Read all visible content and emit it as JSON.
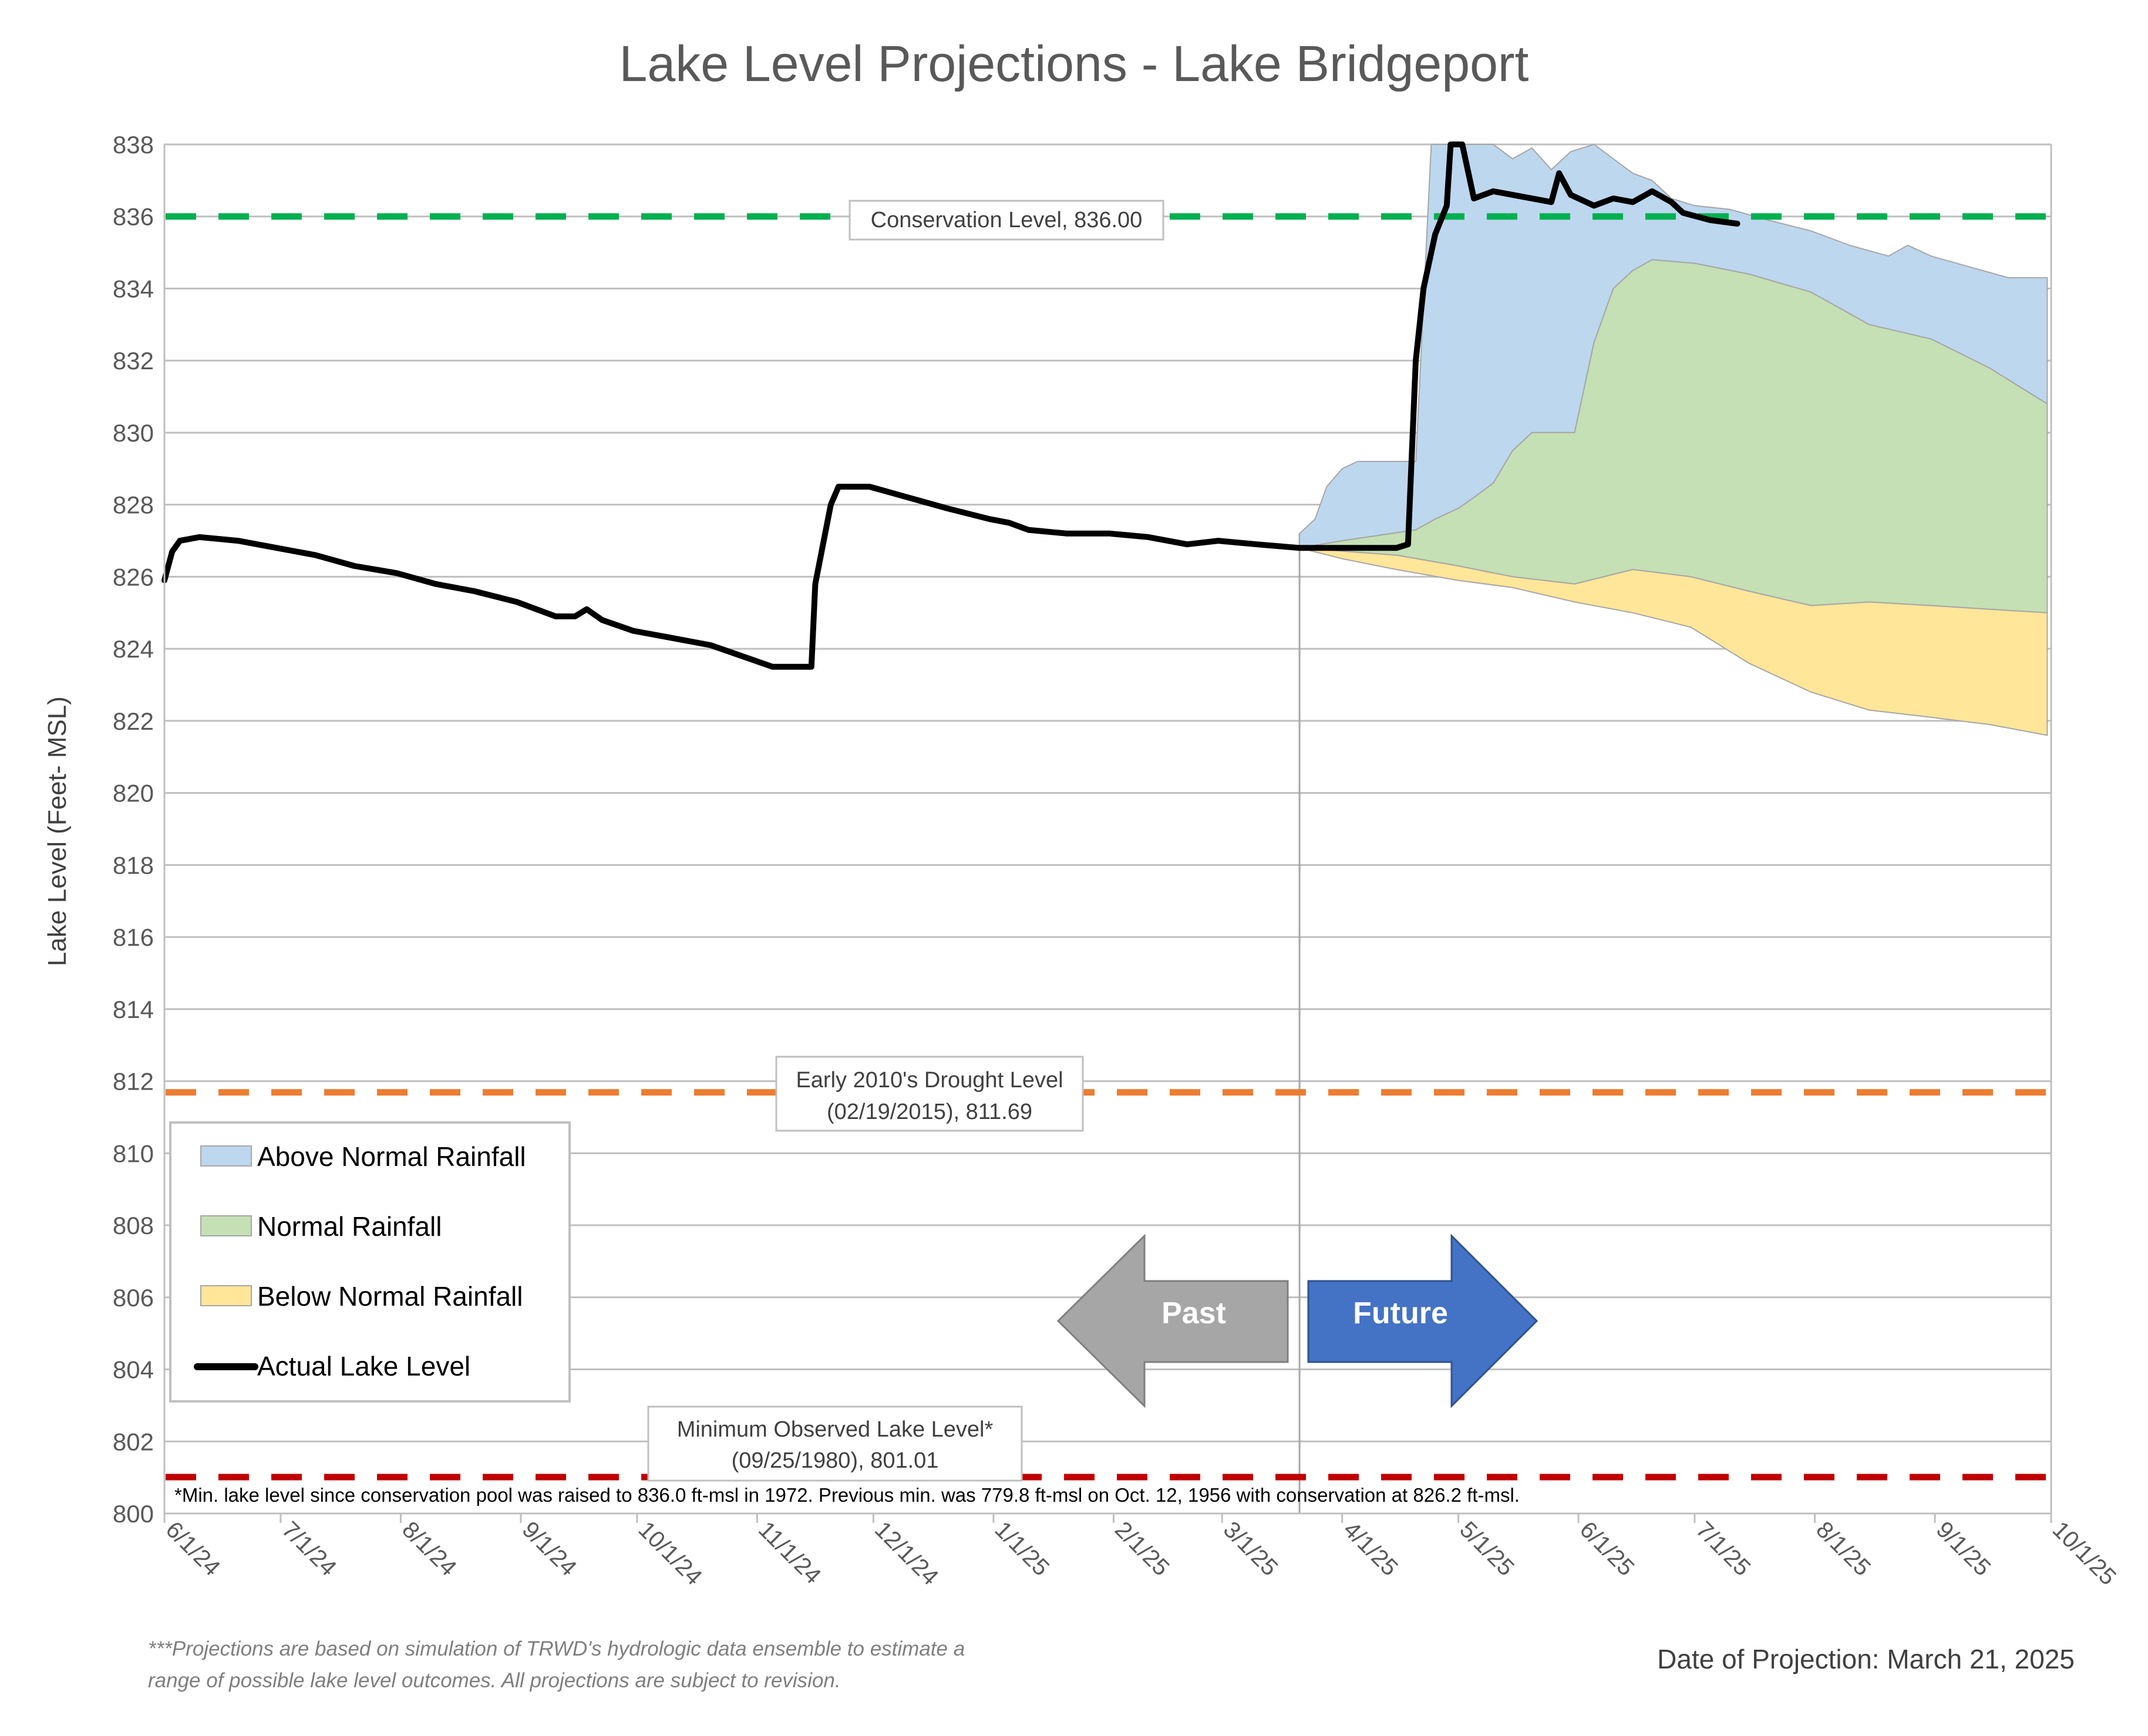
{
  "chart_data": {
    "type": "area",
    "title": "Lake Level Projections - Lake Bridgeport",
    "ylabel": "Lake Level (Feet- MSL)",
    "xlabel": "",
    "ylim": [
      800,
      838
    ],
    "yticks": [
      800,
      802,
      804,
      806,
      808,
      810,
      812,
      814,
      816,
      818,
      820,
      822,
      824,
      826,
      828,
      830,
      832,
      834,
      836,
      838
    ],
    "xlim": [
      "2024-06-01",
      "2025-10-01"
    ],
    "xticks": [
      {
        "label": "6/1/24",
        "date": "2024-06-01"
      },
      {
        "label": "7/1/24",
        "date": "2024-07-01"
      },
      {
        "label": "8/1/24",
        "date": "2024-08-01"
      },
      {
        "label": "9/1/24",
        "date": "2024-09-01"
      },
      {
        "label": "10/1/24",
        "date": "2024-10-01"
      },
      {
        "label": "11/1/24",
        "date": "2024-11-01"
      },
      {
        "label": "12/1/24",
        "date": "2024-12-01"
      },
      {
        "label": "1/1/25",
        "date": "2025-01-01"
      },
      {
        "label": "2/1/25",
        "date": "2025-02-01"
      },
      {
        "label": "3/1/25",
        "date": "2025-03-01"
      },
      {
        "label": "4/1/25",
        "date": "2025-04-01"
      },
      {
        "label": "5/1/25",
        "date": "2025-05-01"
      },
      {
        "label": "6/1/25",
        "date": "2025-06-01"
      },
      {
        "label": "7/1/25",
        "date": "2025-07-01"
      },
      {
        "label": "8/1/25",
        "date": "2025-08-01"
      },
      {
        "label": "9/1/25",
        "date": "2025-09-01"
      },
      {
        "label": "10/1/25",
        "date": "2025-10-01"
      }
    ],
    "grid": true,
    "projection_date": "2025-03-21",
    "reference_lines": [
      {
        "name": "Conservation Level",
        "value": 836.0,
        "color": "#00b050",
        "label": "Conservation Level, 836.00"
      },
      {
        "name": "Early 2010's Drought Level",
        "value": 811.69,
        "color": "#ed7d31",
        "label_line1": "Early 2010's Drought Level",
        "label_line2": "(02/19/2015), 811.69"
      },
      {
        "name": "Minimum Observed Lake Level",
        "value": 801.01,
        "color": "#c00000",
        "label_line1": "Minimum Observed Lake Level*",
        "label_line2": "(09/25/1980), 801.01"
      }
    ],
    "series": [
      {
        "name": "Above Normal Rainfall",
        "type": "band",
        "color": "#bdd7ee",
        "upper": [
          [
            "2025-03-21",
            827.2
          ],
          [
            "2025-03-25",
            827.6
          ],
          [
            "2025-03-28",
            828.5
          ],
          [
            "2025-04-01",
            829.0
          ],
          [
            "2025-04-05",
            829.2
          ],
          [
            "2025-04-10",
            829.2
          ],
          [
            "2025-04-15",
            829.2
          ],
          [
            "2025-04-20",
            829.2
          ],
          [
            "2025-04-24",
            838.0
          ],
          [
            "2025-05-10",
            838.0
          ],
          [
            "2025-05-15",
            837.6
          ],
          [
            "2025-05-20",
            837.9
          ],
          [
            "2025-05-25",
            837.3
          ],
          [
            "2025-05-30",
            837.8
          ],
          [
            "2025-06-05",
            838.0
          ],
          [
            "2025-06-10",
            837.6
          ],
          [
            "2025-06-15",
            837.2
          ],
          [
            "2025-06-20",
            837.0
          ],
          [
            "2025-06-25",
            836.5
          ],
          [
            "2025-07-01",
            836.3
          ],
          [
            "2025-07-10",
            836.2
          ],
          [
            "2025-07-20",
            835.9
          ],
          [
            "2025-07-31",
            835.6
          ],
          [
            "2025-08-10",
            835.2
          ],
          [
            "2025-08-20",
            834.9
          ],
          [
            "2025-08-25",
            835.2
          ],
          [
            "2025-08-31",
            834.9
          ],
          [
            "2025-09-10",
            834.6
          ],
          [
            "2025-09-20",
            834.3
          ],
          [
            "2025-09-30",
            834.3
          ]
        ],
        "lower": [
          [
            "2025-03-21",
            826.8
          ],
          [
            "2025-04-01",
            827.0
          ],
          [
            "2025-04-20",
            827.3
          ],
          [
            "2025-04-25",
            827.6
          ],
          [
            "2025-05-01",
            827.9
          ],
          [
            "2025-05-05",
            828.2
          ],
          [
            "2025-05-10",
            828.6
          ],
          [
            "2025-05-15",
            829.5
          ],
          [
            "2025-05-20",
            830.0
          ],
          [
            "2025-05-25",
            830.0
          ],
          [
            "2025-05-31",
            830.0
          ],
          [
            "2025-06-05",
            832.5
          ],
          [
            "2025-06-10",
            834.0
          ],
          [
            "2025-06-15",
            834.5
          ],
          [
            "2025-06-20",
            834.8
          ],
          [
            "2025-07-01",
            834.7
          ],
          [
            "2025-07-15",
            834.4
          ],
          [
            "2025-07-31",
            833.9
          ],
          [
            "2025-08-15",
            833.0
          ],
          [
            "2025-08-31",
            832.6
          ],
          [
            "2025-09-15",
            831.8
          ],
          [
            "2025-09-30",
            830.8
          ]
        ]
      },
      {
        "name": "Normal Rainfall",
        "type": "band",
        "color": "#c5e0b4",
        "upper": [
          [
            "2025-03-21",
            826.8
          ],
          [
            "2025-04-01",
            827.0
          ],
          [
            "2025-04-20",
            827.3
          ],
          [
            "2025-04-25",
            827.6
          ],
          [
            "2025-05-01",
            827.9
          ],
          [
            "2025-05-05",
            828.2
          ],
          [
            "2025-05-10",
            828.6
          ],
          [
            "2025-05-15",
            829.5
          ],
          [
            "2025-05-20",
            830.0
          ],
          [
            "2025-05-25",
            830.0
          ],
          [
            "2025-05-31",
            830.0
          ],
          [
            "2025-06-05",
            832.5
          ],
          [
            "2025-06-10",
            834.0
          ],
          [
            "2025-06-15",
            834.5
          ],
          [
            "2025-06-20",
            834.8
          ],
          [
            "2025-07-01",
            834.7
          ],
          [
            "2025-07-15",
            834.4
          ],
          [
            "2025-07-31",
            833.9
          ],
          [
            "2025-08-15",
            833.0
          ],
          [
            "2025-08-31",
            832.6
          ],
          [
            "2025-09-15",
            831.8
          ],
          [
            "2025-09-30",
            830.8
          ]
        ],
        "lower": [
          [
            "2025-03-21",
            826.8
          ],
          [
            "2025-04-15",
            826.6
          ],
          [
            "2025-05-01",
            826.3
          ],
          [
            "2025-05-15",
            826.0
          ],
          [
            "2025-05-31",
            825.8
          ],
          [
            "2025-06-15",
            826.2
          ],
          [
            "2025-06-30",
            826.0
          ],
          [
            "2025-07-15",
            825.6
          ],
          [
            "2025-07-31",
            825.2
          ],
          [
            "2025-08-15",
            825.3
          ],
          [
            "2025-08-31",
            825.2
          ],
          [
            "2025-09-15",
            825.1
          ],
          [
            "2025-09-30",
            825.0
          ]
        ]
      },
      {
        "name": "Below Normal Rainfall",
        "type": "band",
        "color": "#ffe699",
        "upper": [
          [
            "2025-03-21",
            826.8
          ],
          [
            "2025-04-15",
            826.6
          ],
          [
            "2025-05-01",
            826.3
          ],
          [
            "2025-05-15",
            826.0
          ],
          [
            "2025-05-31",
            825.8
          ],
          [
            "2025-06-15",
            826.2
          ],
          [
            "2025-06-30",
            826.0
          ],
          [
            "2025-07-15",
            825.6
          ],
          [
            "2025-07-31",
            825.2
          ],
          [
            "2025-08-15",
            825.3
          ],
          [
            "2025-08-31",
            825.2
          ],
          [
            "2025-09-15",
            825.1
          ],
          [
            "2025-09-30",
            825.0
          ]
        ],
        "lower": [
          [
            "2025-03-21",
            826.8
          ],
          [
            "2025-04-01",
            826.5
          ],
          [
            "2025-04-15",
            826.2
          ],
          [
            "2025-05-01",
            825.9
          ],
          [
            "2025-05-15",
            825.7
          ],
          [
            "2025-05-31",
            825.3
          ],
          [
            "2025-06-15",
            825.0
          ],
          [
            "2025-06-30",
            824.6
          ],
          [
            "2025-07-15",
            823.6
          ],
          [
            "2025-07-31",
            822.8
          ],
          [
            "2025-08-15",
            822.3
          ],
          [
            "2025-08-31",
            822.1
          ],
          [
            "2025-09-15",
            821.9
          ],
          [
            "2025-09-30",
            821.6
          ]
        ]
      },
      {
        "name": "Actual Lake Level",
        "type": "line",
        "color": "#000000",
        "points": [
          [
            "2024-06-01",
            825.9
          ],
          [
            "2024-06-03",
            826.7
          ],
          [
            "2024-06-05",
            827.0
          ],
          [
            "2024-06-10",
            827.1
          ],
          [
            "2024-06-20",
            827.0
          ],
          [
            "2024-06-30",
            826.8
          ],
          [
            "2024-07-10",
            826.6
          ],
          [
            "2024-07-20",
            826.3
          ],
          [
            "2024-07-31",
            826.1
          ],
          [
            "2024-08-10",
            825.8
          ],
          [
            "2024-08-20",
            825.6
          ],
          [
            "2024-08-31",
            825.3
          ],
          [
            "2024-09-05",
            825.1
          ],
          [
            "2024-09-10",
            824.9
          ],
          [
            "2024-09-15",
            824.9
          ],
          [
            "2024-09-18",
            825.1
          ],
          [
            "2024-09-22",
            824.8
          ],
          [
            "2024-09-30",
            824.5
          ],
          [
            "2024-10-10",
            824.3
          ],
          [
            "2024-10-20",
            824.1
          ],
          [
            "2024-10-28",
            823.8
          ],
          [
            "2024-11-05",
            823.5
          ],
          [
            "2024-11-15",
            823.5
          ],
          [
            "2024-11-16",
            825.8
          ],
          [
            "2024-11-20",
            828.0
          ],
          [
            "2024-11-22",
            828.5
          ],
          [
            "2024-11-30",
            828.5
          ],
          [
            "2024-12-10",
            828.2
          ],
          [
            "2024-12-20",
            827.9
          ],
          [
            "2024-12-31",
            827.6
          ],
          [
            "2025-01-05",
            827.5
          ],
          [
            "2025-01-10",
            827.3
          ],
          [
            "2025-01-20",
            827.2
          ],
          [
            "2025-01-31",
            827.2
          ],
          [
            "2025-02-10",
            827.1
          ],
          [
            "2025-02-20",
            826.9
          ],
          [
            "2025-02-28",
            827.0
          ],
          [
            "2025-03-10",
            826.9
          ],
          [
            "2025-03-21",
            826.8
          ],
          [
            "2025-04-05",
            826.8
          ],
          [
            "2025-04-15",
            826.8
          ],
          [
            "2025-04-18",
            826.9
          ],
          [
            "2025-04-20",
            832.0
          ],
          [
            "2025-04-22",
            834.0
          ],
          [
            "2025-04-25",
            835.5
          ],
          [
            "2025-04-28",
            836.3
          ],
          [
            "2025-04-29",
            838.0
          ],
          [
            "2025-05-02",
            838.0
          ],
          [
            "2025-05-05",
            836.5
          ],
          [
            "2025-05-10",
            836.7
          ],
          [
            "2025-05-15",
            836.6
          ],
          [
            "2025-05-20",
            836.5
          ],
          [
            "2025-05-25",
            836.4
          ],
          [
            "2025-05-27",
            837.2
          ],
          [
            "2025-05-30",
            836.6
          ],
          [
            "2025-06-05",
            836.3
          ],
          [
            "2025-06-10",
            836.5
          ],
          [
            "2025-06-15",
            836.4
          ],
          [
            "2025-06-20",
            836.7
          ],
          [
            "2025-06-25",
            836.4
          ],
          [
            "2025-06-28",
            836.1
          ],
          [
            "2025-07-05",
            835.9
          ],
          [
            "2025-07-12",
            835.8
          ]
        ]
      }
    ],
    "legend": {
      "placement": "bottom-left",
      "entries": [
        "Above Normal Rainfall",
        "Normal Rainfall",
        "Below Normal Rainfall",
        "Actual Lake Level"
      ]
    },
    "annotations": {
      "past_label": "Past",
      "future_label": "Future",
      "arrow_colors": {
        "past": "#a6a6a6",
        "future": "#4472c4"
      },
      "note": "*Min. lake level since conservation pool was raised to 836.0 ft-msl in 1972.  Previous min. was 779.8 ft-msl on Oct. 12, 1956 with conservation at 826.2 ft-msl.",
      "footnote_line1": "***Projections are based on simulation of TRWD's hydrologic data ensemble to estimate a",
      "footnote_line2": "range of possible lake level outcomes.  All projections are subject to revision.",
      "projection_date_label": "Date of Projection: March 21, 2025"
    }
  }
}
